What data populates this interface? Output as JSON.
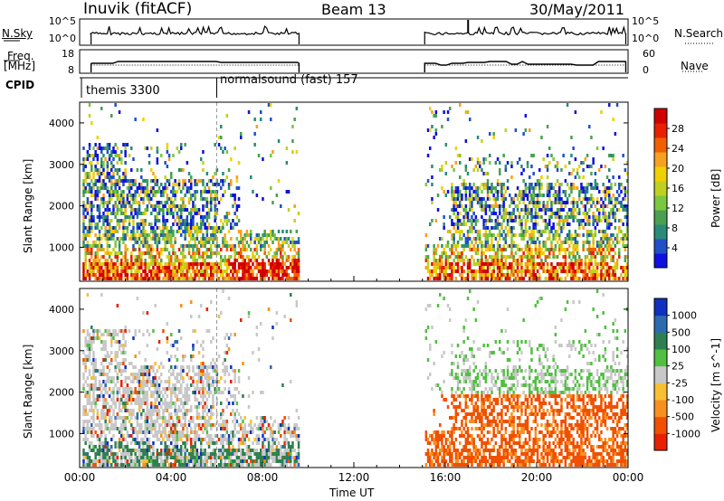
{
  "header": {
    "station": "Inuvik (fitACF)",
    "beam": "Beam 13",
    "date": "30/May/2011"
  },
  "side_labels": {
    "nsky": "N.Sky",
    "freq_top": "Freq.",
    "freq_bottom": "[MHz]",
    "cpid": "CPID",
    "nsearch": "N.Search",
    "nave": "Nave"
  },
  "cpid_labels": {
    "first": "themis 3300",
    "second": "normalsound (fast) 157"
  },
  "chart_data": [
    {
      "type": "line",
      "panel": "noise",
      "ylabel_left": "N.Sky",
      "ylabel_right": "N.Search",
      "ytick_labels": [
        "10^5",
        "10^0"
      ],
      "segments_hours": [
        [
          0.5,
          9.6
        ],
        [
          15.1,
          23.9
        ]
      ],
      "level": "near 10^5 with occasional spikes"
    },
    {
      "type": "line",
      "panel": "frequency",
      "ylabel_left": "Freq. [MHz]",
      "ylabel_right": "Nave",
      "yticks_left": [
        8,
        18
      ],
      "yticks_right": [
        0,
        60
      ],
      "segments_hours": [
        [
          0.5,
          9.6
        ],
        [
          15.1,
          23.9
        ]
      ],
      "frequency_MHz": 11
    },
    {
      "type": "heatmap",
      "panel": "power",
      "ylabel": "Slant Range [km]",
      "yticks": [
        1000,
        2000,
        3000,
        4000
      ],
      "ylim": [
        180,
        4500
      ],
      "xlim_hours": [
        0,
        24
      ],
      "colorbar_label": "Power [dB]",
      "colorbar_ticks": [
        "4",
        "8",
        "12",
        "16",
        "20",
        "24",
        "28"
      ],
      "colorbar_colors": [
        "#1010e0",
        "#2050c8",
        "#2a8a78",
        "#4aa050",
        "#7ac840",
        "#c0d020",
        "#f0d000",
        "#f8a020",
        "#f06000",
        "#e82000",
        "#d00000"
      ]
    },
    {
      "type": "heatmap",
      "panel": "velocity",
      "ylabel": "Slant Range [km]",
      "yticks": [
        1000,
        2000,
        3000,
        4000
      ],
      "ylim": [
        180,
        4500
      ],
      "xlim_hours": [
        0,
        24
      ],
      "colorbar_label": "Velocity [m s^-1]",
      "colorbar_ticks": [
        "1000",
        "500",
        "100",
        "25",
        "-25",
        "-100",
        "-500",
        "-1000"
      ],
      "colorbar_colors": [
        "#1030c0",
        "#2e6ab0",
        "#2e8050",
        "#50c040",
        "#c8c8c8",
        "#f8c030",
        "#f89020",
        "#f05000",
        "#e82000"
      ]
    }
  ],
  "x_axis": {
    "ticks": [
      "00:00",
      "04:00",
      "08:00",
      "12:00",
      "16:00",
      "20:00",
      "00:00"
    ],
    "label": "Time UT"
  }
}
